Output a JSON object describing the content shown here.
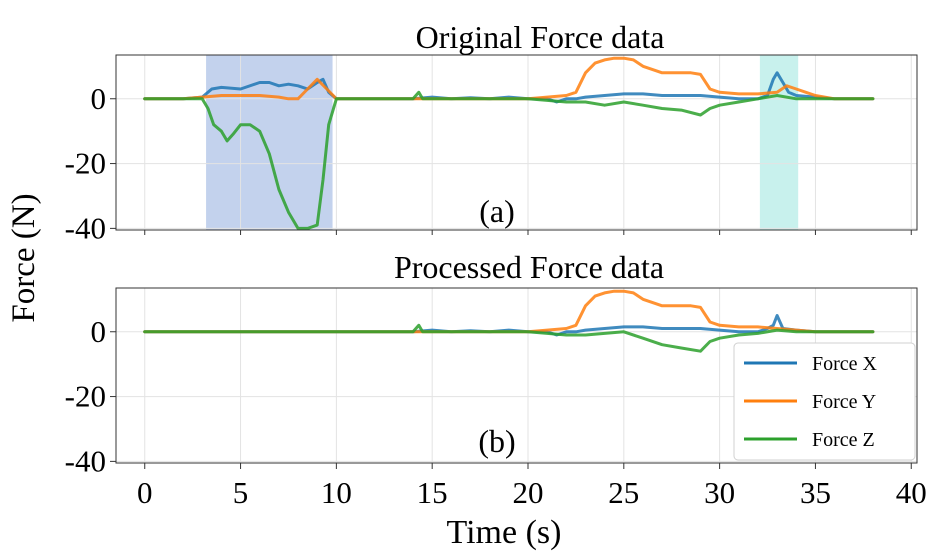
{
  "chart_data": [
    {
      "type": "line",
      "title": "Original Force data",
      "annotation": "(a)",
      "xlim": [
        -1.5,
        40.3
      ],
      "ylim": [
        -40.5,
        13.5
      ],
      "yticks": [
        0,
        -20,
        -40
      ],
      "ytick_labels": [
        "0",
        "-20",
        "-40"
      ],
      "grid": true,
      "highlight_regions": [
        {
          "x": [
            3.2,
            9.8
          ],
          "color": "#a9bfe6"
        },
        {
          "x": [
            32.1,
            34.1
          ],
          "color": "#b0ebe6"
        }
      ],
      "series": [
        {
          "name": "Force X",
          "color": "#1f77b4",
          "x": [
            0,
            2,
            3,
            3.5,
            4,
            5,
            6,
            6.5,
            7,
            7.5,
            8,
            8.5,
            9,
            9.3,
            9.6,
            10,
            12,
            14,
            15,
            16,
            17,
            18,
            19,
            20,
            21,
            21.5,
            22,
            22.5,
            23,
            24,
            25,
            26,
            27,
            28,
            29,
            30,
            31,
            32,
            32.5,
            32.8,
            33,
            33.3,
            33.6,
            34,
            35,
            36,
            37,
            38
          ],
          "values": [
            0,
            0,
            0.5,
            3,
            3.5,
            3,
            5,
            5,
            4,
            4.5,
            4,
            3,
            5,
            6,
            2,
            0,
            0,
            0,
            0.5,
            0,
            0.3,
            0,
            0.5,
            0,
            0,
            -1,
            0,
            0,
            0.5,
            1,
            1.5,
            1.5,
            1,
            1,
            1,
            0.5,
            0,
            0,
            1,
            6,
            8,
            5,
            2,
            1,
            0.5,
            0,
            0,
            0
          ]
        },
        {
          "name": "Force Y",
          "color": "#ff7f0e",
          "x": [
            0,
            2,
            3,
            4,
            5,
            6,
            7,
            7.5,
            8,
            8.5,
            9,
            9.5,
            10,
            12,
            14,
            16,
            18,
            20,
            21,
            22,
            22.5,
            23,
            23.5,
            24,
            24.5,
            25,
            25.5,
            26,
            26.5,
            27,
            28,
            28.5,
            29,
            29.5,
            30,
            31,
            32,
            33,
            33.5,
            34,
            34.5,
            35,
            36,
            37,
            38
          ],
          "values": [
            0,
            0,
            0.5,
            1,
            1,
            1,
            0.5,
            0,
            0,
            3,
            6,
            3,
            0,
            0,
            0,
            0,
            0,
            0,
            0.5,
            1,
            2,
            8,
            11,
            12,
            12.5,
            12.5,
            12,
            10,
            9,
            8,
            8,
            8,
            7.5,
            3,
            2,
            1.5,
            1.5,
            2,
            4,
            3,
            2,
            1,
            0,
            0,
            0
          ]
        },
        {
          "name": "Force Z",
          "color": "#2ca02c",
          "x": [
            0,
            2,
            3,
            3.3,
            3.6,
            4,
            4.3,
            4.6,
            5,
            5.5,
            6,
            6.5,
            7,
            7.5,
            8,
            8.5,
            9,
            9.3,
            9.6,
            10,
            12,
            14,
            14.3,
            14.5,
            15,
            16,
            18,
            20,
            21,
            22,
            23,
            24,
            25,
            26,
            27,
            28,
            29,
            29.5,
            30,
            31,
            32,
            33,
            34,
            35,
            36,
            37,
            38
          ],
          "values": [
            0,
            0,
            0,
            -3,
            -8,
            -10,
            -13,
            -11,
            -8,
            -8,
            -10,
            -17,
            -28,
            -35,
            -40,
            -40,
            -39,
            -25,
            -8,
            0,
            0,
            0,
            2,
            0,
            0,
            0,
            0,
            0,
            -0.5,
            -1,
            -1,
            -2,
            -1,
            -2,
            -3,
            -3.5,
            -5,
            -3,
            -2,
            -1,
            0,
            1,
            0,
            0,
            0,
            0,
            0
          ]
        }
      ]
    },
    {
      "type": "line",
      "title": "Processed Force data",
      "annotation": "(b)",
      "xlabel": "Time (s)",
      "ylabel": "Force (N)",
      "xlim": [
        -1.5,
        40.3
      ],
      "ylim": [
        -40.5,
        13.5
      ],
      "xticks": [
        0,
        5,
        10,
        15,
        20,
        25,
        30,
        35,
        40
      ],
      "xtick_labels": [
        "0",
        "5",
        "10",
        "15",
        "20",
        "25",
        "30",
        "35",
        "40"
      ],
      "yticks": [
        0,
        -20,
        -40
      ],
      "ytick_labels": [
        "0",
        "-20",
        "-40"
      ],
      "grid": true,
      "legend_position": "bottom-right",
      "series": [
        {
          "name": "Force X",
          "color": "#1f77b4",
          "x": [
            0,
            2,
            4,
            6,
            8,
            10,
            12,
            14,
            15,
            16,
            17,
            18,
            19,
            20,
            21,
            21.5,
            22,
            22.5,
            23,
            24,
            25,
            26,
            27,
            28,
            29,
            30,
            31,
            32,
            32.5,
            32.8,
            33,
            33.3,
            34,
            35,
            36,
            37,
            38
          ],
          "values": [
            0,
            0,
            0,
            0,
            0,
            0,
            0,
            0,
            0.5,
            0,
            0.3,
            0,
            0.5,
            0,
            0,
            -1,
            0,
            0,
            0.5,
            1,
            1.5,
            1.5,
            1,
            1,
            1,
            0.5,
            0,
            0,
            1,
            2,
            5,
            1,
            0.5,
            0,
            0,
            0,
            0
          ]
        },
        {
          "name": "Force Y",
          "color": "#ff7f0e",
          "x": [
            0,
            2,
            4,
            6,
            8,
            10,
            12,
            14,
            16,
            18,
            20,
            21,
            22,
            22.5,
            23,
            23.5,
            24,
            24.5,
            25,
            25.5,
            26,
            26.5,
            27,
            28,
            28.5,
            29,
            29.5,
            30,
            31,
            32,
            33,
            34,
            35,
            36,
            37,
            38
          ],
          "values": [
            0,
            0,
            0,
            0,
            0,
            0,
            0,
            0,
            0,
            0,
            0,
            0.5,
            1,
            2,
            8,
            11,
            12,
            12.5,
            12.5,
            12,
            10,
            9,
            8,
            8,
            8,
            7.5,
            3,
            2,
            1.5,
            1.5,
            1,
            0.5,
            0,
            0,
            0,
            0
          ]
        },
        {
          "name": "Force Z",
          "color": "#2ca02c",
          "x": [
            0,
            2,
            4,
            6,
            8,
            10,
            12,
            14,
            14.3,
            14.5,
            15,
            16,
            18,
            20,
            21,
            22,
            23,
            24,
            25,
            26,
            27,
            28,
            29,
            29.5,
            30,
            31,
            32,
            33,
            34,
            35,
            36,
            37,
            38
          ],
          "values": [
            0,
            0,
            0,
            0,
            0,
            0,
            0,
            0,
            2,
            0,
            0,
            0,
            0,
            0,
            -0.5,
            -1,
            -1,
            -0.5,
            0,
            -2,
            -4,
            -5,
            -6,
            -3,
            -2,
            -1,
            -0.5,
            0.5,
            0,
            0,
            0,
            0,
            0
          ]
        }
      ]
    }
  ]
}
